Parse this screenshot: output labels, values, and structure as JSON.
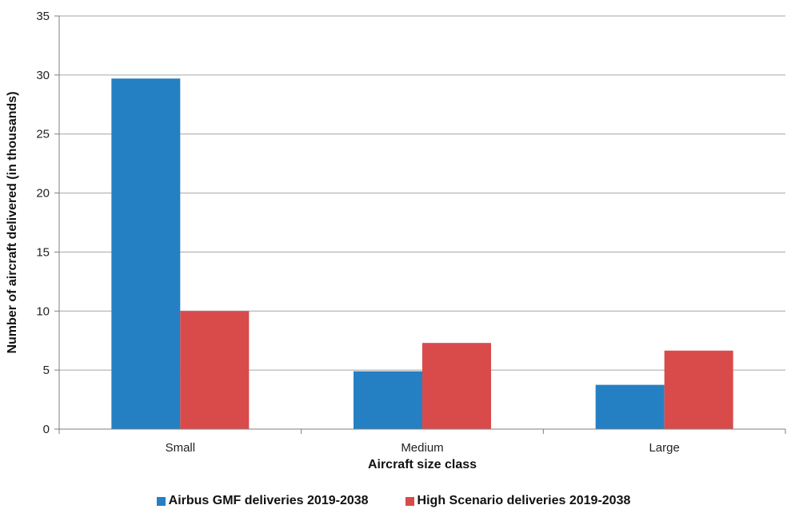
{
  "chart_data": {
    "type": "bar",
    "categories": [
      "Small",
      "Medium",
      "Large"
    ],
    "series": [
      {
        "name": "Airbus GMF deliveries 2019-2038",
        "color": "#2580c3",
        "values": [
          29.7,
          4.9,
          3.75
        ]
      },
      {
        "name": "High Scenario deliveries 2019-2038",
        "color": "#d94b4b",
        "values": [
          10.0,
          7.3,
          6.65
        ]
      }
    ],
    "xlabel": "Aircraft size class",
    "ylabel": "Number of aircraft delivered (in thousands)",
    "ylim": [
      0,
      35
    ],
    "yticks": [
      0,
      5,
      10,
      15,
      20,
      25,
      30,
      35
    ],
    "grid": true,
    "legend_position": "bottom"
  }
}
